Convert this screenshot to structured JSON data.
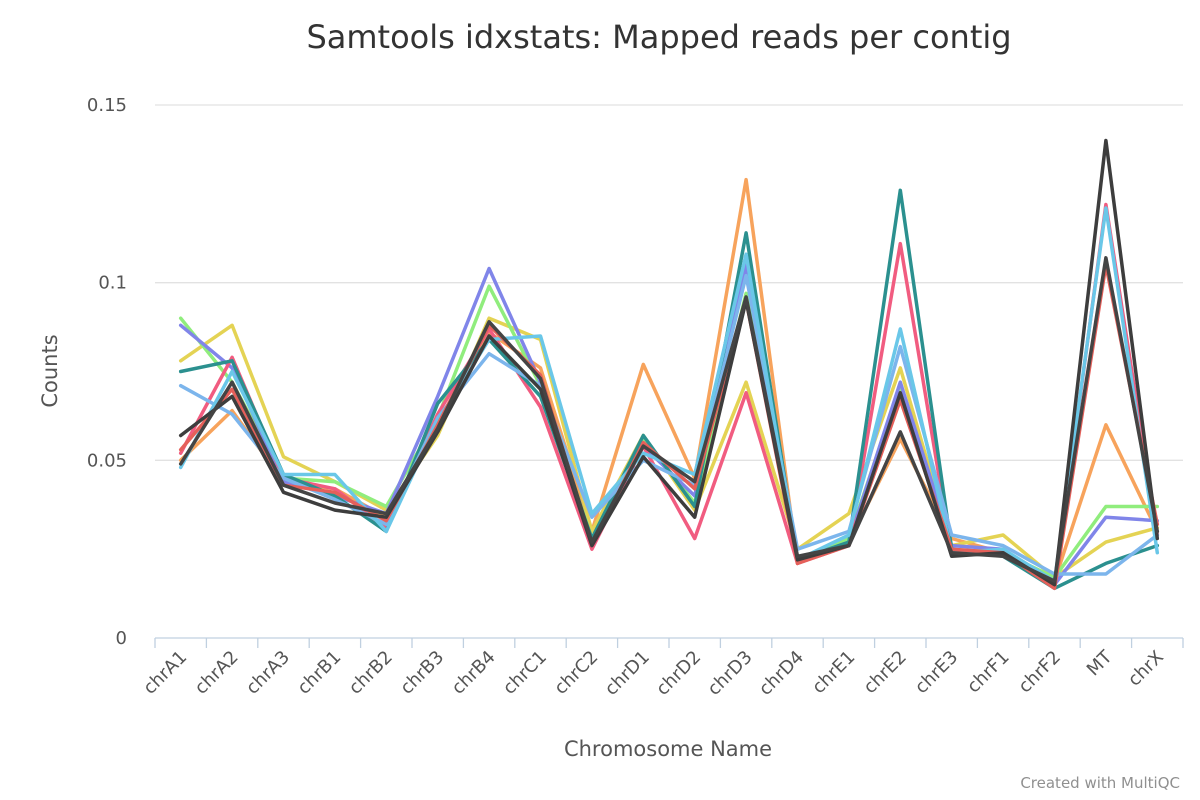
{
  "chart_data": {
    "type": "line",
    "title": "Samtools idxstats: Mapped reads per contig",
    "xlabel": "Chromosome Name",
    "ylabel": "Counts",
    "ylim": [
      0,
      0.15
    ],
    "yticks": [
      "0",
      "0.05",
      "0.1",
      "0.15"
    ],
    "grid": true,
    "legend": "none",
    "categories": [
      "chrA1",
      "chrA2",
      "chrA3",
      "chrB1",
      "chrB2",
      "chrB3",
      "chrB4",
      "chrC1",
      "chrC2",
      "chrD1",
      "chrD2",
      "chrD3",
      "chrD4",
      "chrE1",
      "chrE2",
      "chrE3",
      "chrF1",
      "chrF2",
      "MT",
      "chrX"
    ],
    "series": [
      {
        "color": "#f7a35c",
        "values": [
          0.05,
          0.064,
          0.044,
          0.042,
          0.034,
          0.06,
          0.086,
          0.076,
          0.03,
          0.077,
          0.045,
          0.129,
          0.021,
          0.027,
          0.056,
          0.028,
          0.024,
          0.016,
          0.06,
          0.03
        ]
      },
      {
        "color": "#e4d354",
        "values": [
          0.078,
          0.088,
          0.051,
          0.044,
          0.036,
          0.057,
          0.09,
          0.084,
          0.03,
          0.057,
          0.036,
          0.072,
          0.025,
          0.035,
          0.076,
          0.026,
          0.029,
          0.017,
          0.027,
          0.031
        ]
      },
      {
        "color": "#90ed7d",
        "values": [
          0.09,
          0.072,
          0.045,
          0.044,
          0.037,
          0.062,
          0.099,
          0.071,
          0.028,
          0.056,
          0.038,
          0.097,
          0.022,
          0.028,
          0.071,
          0.025,
          0.024,
          0.017,
          0.037,
          0.037
        ]
      },
      {
        "color": "#8085e9",
        "values": [
          0.088,
          0.076,
          0.044,
          0.04,
          0.035,
          0.068,
          0.104,
          0.072,
          0.027,
          0.054,
          0.04,
          0.105,
          0.022,
          0.027,
          0.072,
          0.026,
          0.025,
          0.015,
          0.034,
          0.033
        ]
      },
      {
        "color": "#f15c80",
        "values": [
          0.052,
          0.079,
          0.045,
          0.042,
          0.031,
          0.063,
          0.087,
          0.065,
          0.025,
          0.054,
          0.028,
          0.069,
          0.021,
          0.026,
          0.111,
          0.024,
          0.024,
          0.014,
          0.122,
          0.029
        ]
      },
      {
        "color": "#2b908f",
        "values": [
          0.075,
          0.078,
          0.046,
          0.04,
          0.03,
          0.066,
          0.084,
          0.068,
          0.028,
          0.057,
          0.037,
          0.114,
          0.022,
          0.027,
          0.126,
          0.025,
          0.023,
          0.014,
          0.021,
          0.026
        ]
      },
      {
        "color": "#7cb5ec",
        "values": [
          0.071,
          0.063,
          0.045,
          0.039,
          0.032,
          0.062,
          0.08,
          0.071,
          0.034,
          0.05,
          0.043,
          0.102,
          0.025,
          0.03,
          0.082,
          0.029,
          0.026,
          0.018,
          0.018,
          0.029
        ]
      },
      {
        "color": "#6ac7e8",
        "values": [
          0.048,
          0.075,
          0.046,
          0.046,
          0.03,
          0.061,
          0.084,
          0.085,
          0.035,
          0.052,
          0.046,
          0.108,
          0.022,
          0.029,
          0.087,
          0.024,
          0.025,
          0.016,
          0.121,
          0.024
        ]
      },
      {
        "color": "#e5605a",
        "values": [
          0.053,
          0.07,
          0.043,
          0.041,
          0.033,
          0.06,
          0.088,
          0.074,
          0.026,
          0.055,
          0.042,
          0.095,
          0.021,
          0.026,
          0.067,
          0.025,
          0.024,
          0.014,
          0.105,
          0.032
        ]
      },
      {
        "color": "#3d3d3d",
        "values": [
          0.057,
          0.068,
          0.041,
          0.036,
          0.034,
          0.058,
          0.085,
          0.07,
          0.026,
          0.051,
          0.034,
          0.095,
          0.022,
          0.026,
          0.069,
          0.023,
          0.024,
          0.015,
          0.14,
          0.028
        ]
      },
      {
        "color": "#444444",
        "values": [
          0.049,
          0.072,
          0.043,
          0.038,
          0.035,
          0.059,
          0.089,
          0.073,
          0.027,
          0.054,
          0.044,
          0.096,
          0.023,
          0.026,
          0.058,
          0.024,
          0.023,
          0.016,
          0.107,
          0.03
        ]
      }
    ]
  },
  "credit": "Created with MultiQC"
}
